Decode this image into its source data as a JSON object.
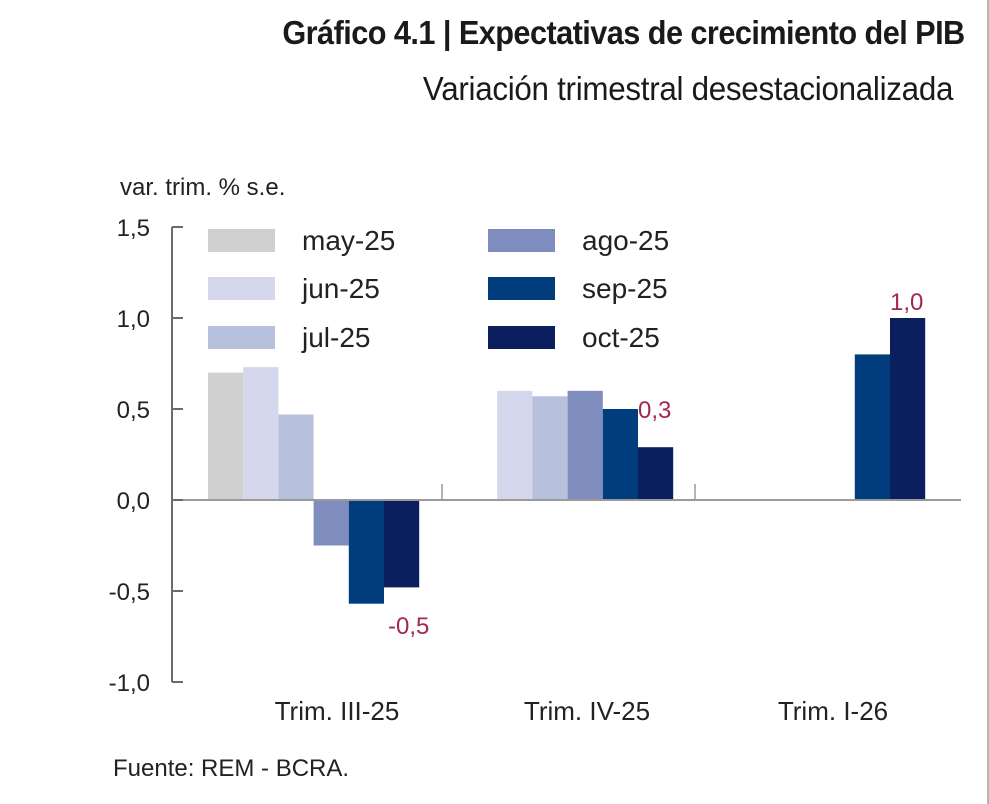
{
  "header": {
    "title": "Gráfico 4.1 | Expectativas de crecimiento del PIB",
    "subtitle": "Variación trimestral desestacionalizada"
  },
  "footer": {
    "source": "Fuente: REM - BCRA."
  },
  "colors": {
    "axis": "#6b6b6b",
    "data_label": "#A3284F"
  },
  "chart_data": {
    "type": "bar",
    "title": "Gráfico 4.1 | Expectativas de crecimiento del PIB",
    "subtitle": "Variación trimestral desestacionalizada",
    "xlabel": "",
    "ylabel": "var. trim. % s.e.",
    "ylim": [
      -1.0,
      1.5
    ],
    "yticks": [
      1.5,
      1.0,
      0.5,
      0.0,
      -0.5,
      -1.0
    ],
    "ytick_labels": [
      "1,5",
      "1,0",
      "0,5",
      "0,0",
      "-0,5",
      "-1,0"
    ],
    "grid": false,
    "legend_position": "top",
    "categories": [
      "Trim. III-25",
      "Trim. IV-25",
      "Trim. I-26"
    ],
    "series": [
      {
        "name": "may-25",
        "color": "#D0D0D0",
        "values": [
          0.7,
          null,
          null
        ]
      },
      {
        "name": "jun-25",
        "color": "#D5D8EC",
        "values": [
          0.73,
          0.6,
          null
        ]
      },
      {
        "name": "jul-25",
        "color": "#B7C0DC",
        "values": [
          0.47,
          0.57,
          null
        ]
      },
      {
        "name": "ago-25",
        "color": "#7F8DBE",
        "values": [
          -0.25,
          0.6,
          null
        ]
      },
      {
        "name": "sep-25",
        "color": "#013C7D",
        "values": [
          -0.57,
          0.5,
          0.8
        ]
      },
      {
        "name": "oct-25",
        "color": "#0B1F5E",
        "values": [
          -0.48,
          0.29,
          1.0
        ]
      }
    ],
    "annotations": [
      {
        "category": "Trim. III-25",
        "series": "oct-25",
        "text": "-0,5"
      },
      {
        "category": "Trim. IV-25",
        "series": "oct-25",
        "text": "0,3"
      },
      {
        "category": "Trim. I-26",
        "series": "oct-25",
        "text": "1,0"
      }
    ]
  }
}
